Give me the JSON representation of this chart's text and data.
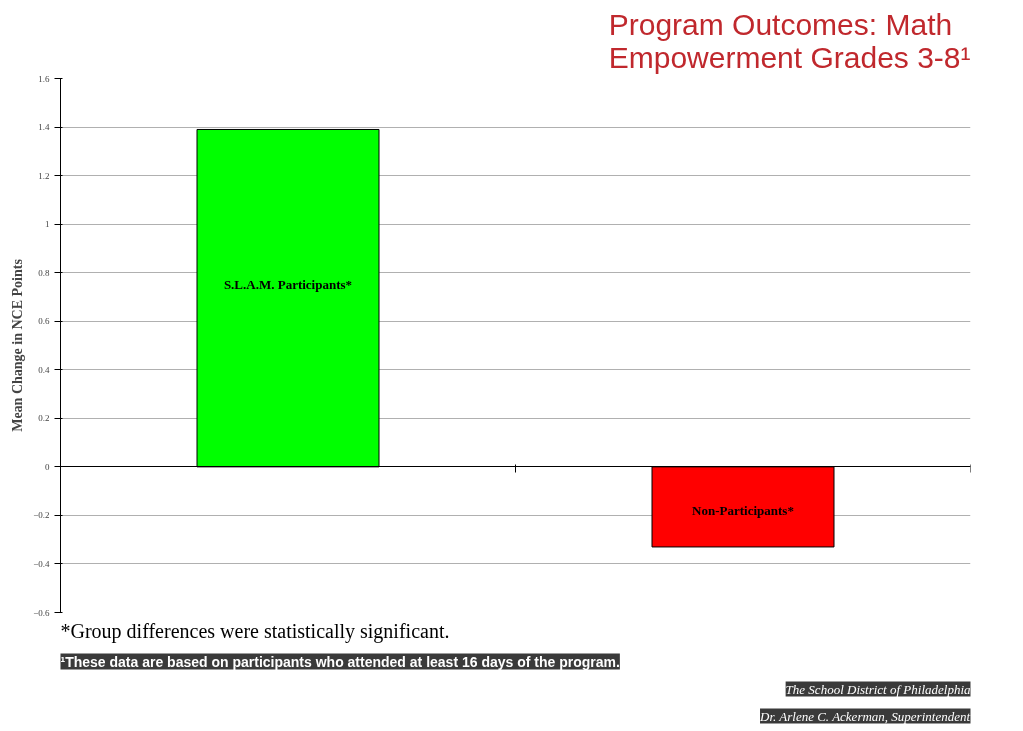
{
  "chart_data": {
    "type": "bar",
    "title": "Program Outcomes: Math\nEmpowerment Grades 3-8¹",
    "ylabel": "Mean Change in NCE Points",
    "categories": [
      "S.L.A.M. Participants*",
      "Non-Participants*"
    ],
    "values": [
      1.39,
      -0.33
    ],
    "colors": [
      "#00ff00",
      "#ff0000"
    ],
    "ylim": [
      -0.6,
      1.6
    ],
    "yticks": [
      -0.6,
      -0.4,
      -0.2,
      0,
      0.2,
      0.4,
      0.6,
      0.8,
      1,
      1.2,
      1.4,
      1.6
    ],
    "grid": "y",
    "tick_labels": "y",
    "annotations": [
      "*Group differences were statistically significant.",
      "¹These data are based on participants who attended at least 16 days of the program.",
      "The School District of Philadelphia",
      "Dr. Arlene C. Ackerman, Superintendent"
    ]
  }
}
